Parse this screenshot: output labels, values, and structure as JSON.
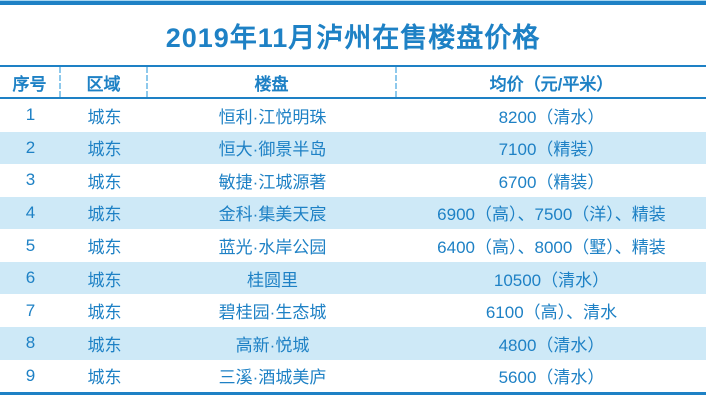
{
  "title": "2019年11月泸州在售楼盘价格",
  "colors": {
    "primary_blue": "#1e81c5",
    "alt_row_background": "#cee9f7",
    "dashed_divider": "#8ec9ec",
    "page_background": "#ffffff"
  },
  "chart_data": {
    "type": "table",
    "title": "2019年11月泸州在售楼盘价格",
    "columns": [
      "序号",
      "区域",
      "楼盘",
      "均价（元/平米）"
    ],
    "rows": [
      [
        "1",
        "城东",
        "恒利·江悦明珠",
        "8200（清水）"
      ],
      [
        "2",
        "城东",
        "恒大·御景半岛",
        "7100（精装）"
      ],
      [
        "3",
        "城东",
        "敏捷·江城源著",
        "6700（精装）"
      ],
      [
        "4",
        "城东",
        "金科·集美天宸",
        "6900（高）、7500（洋）、精装"
      ],
      [
        "5",
        "城东",
        "蓝光·水岸公园",
        "6400（高）、8000（墅）、精装"
      ],
      [
        "6",
        "城东",
        "桂圆里",
        "10500（清水）"
      ],
      [
        "7",
        "城东",
        "碧桂园·生态城",
        "6100（高）、清水"
      ],
      [
        "8",
        "城东",
        "高新·悦城",
        "4800（清水）"
      ],
      [
        "9",
        "城东",
        "三溪·酒城美庐",
        "5600（清水）"
      ]
    ]
  }
}
